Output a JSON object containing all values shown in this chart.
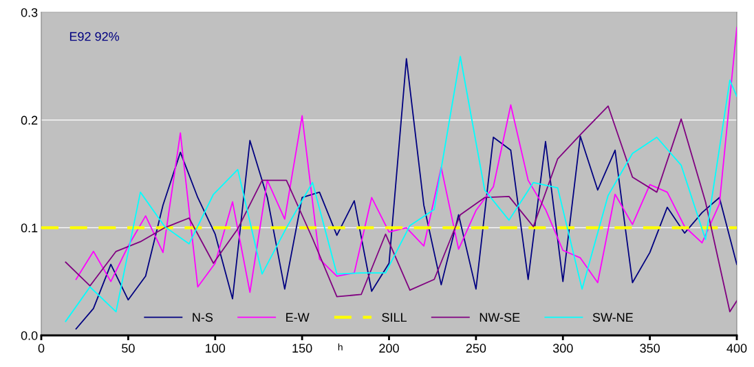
{
  "chart_data": {
    "type": "line",
    "annotations": [
      "E92 92%"
    ],
    "xlabel": "h",
    "xlim": [
      0,
      400
    ],
    "xticks": [
      0,
      50,
      100,
      150,
      200,
      250,
      300,
      350,
      400
    ],
    "ylim": [
      0,
      0.3
    ],
    "yticks": [
      {
        "value": 0,
        "label": "0.0"
      },
      0.1,
      0.2,
      0.3
    ],
    "grid": "y",
    "legend": "bottom",
    "marker": "none",
    "series": [
      {
        "name": "N-S",
        "color": "#000080",
        "x": [
          20,
          30,
          40,
          50,
          60,
          70,
          80,
          90,
          100,
          110,
          120,
          130,
          140,
          150,
          160,
          170,
          180,
          190,
          200,
          210,
          220,
          230,
          240,
          250,
          260,
          270,
          280,
          290,
          300,
          310,
          320,
          330,
          340,
          350,
          360,
          370,
          380,
          390,
          400
        ],
        "values": [
          0.006,
          0.025,
          0.066,
          0.033,
          0.055,
          0.121,
          0.17,
          0.128,
          0.094,
          0.034,
          0.181,
          0.128,
          0.043,
          0.128,
          0.133,
          0.093,
          0.125,
          0.041,
          0.067,
          0.257,
          0.121,
          0.047,
          0.112,
          0.043,
          0.184,
          0.172,
          0.052,
          0.18,
          0.05,
          0.185,
          0.135,
          0.172,
          0.049,
          0.077,
          0.119,
          0.095,
          0.114,
          0.128,
          0.066
        ]
      },
      {
        "name": "E-W",
        "color": "#ff00ff",
        "x": [
          20,
          30,
          40,
          50,
          60,
          70,
          80,
          90,
          100,
          110,
          120,
          130,
          140,
          150,
          160,
          170,
          180,
          190,
          200,
          210,
          220,
          230,
          240,
          250,
          260,
          270,
          280,
          290,
          300,
          310,
          320,
          330,
          340,
          350,
          360,
          370,
          380,
          390,
          400
        ],
        "values": [
          0.052,
          0.078,
          0.05,
          0.083,
          0.111,
          0.077,
          0.188,
          0.045,
          0.067,
          0.124,
          0.04,
          0.144,
          0.108,
          0.204,
          0.071,
          0.055,
          0.058,
          0.128,
          0.096,
          0.1,
          0.083,
          0.156,
          0.08,
          0.116,
          0.138,
          0.214,
          0.144,
          0.117,
          0.079,
          0.072,
          0.049,
          0.131,
          0.103,
          0.14,
          0.133,
          0.101,
          0.086,
          0.122,
          0.286
        ]
      },
      {
        "name": "SILL",
        "color": "#ffff00",
        "line_style": "dashed",
        "x": [
          0,
          400
        ],
        "values": [
          0.1,
          0.1
        ]
      },
      {
        "name": "NW-SE",
        "color": "#800080",
        "x": [
          14,
          28,
          43,
          57,
          71,
          85,
          99,
          113,
          127,
          141,
          156,
          170,
          184,
          198,
          212,
          226,
          241,
          255,
          269,
          283,
          297,
          311,
          326,
          340,
          354,
          368,
          382,
          396,
          400
        ],
        "values": [
          0.068,
          0.046,
          0.078,
          0.087,
          0.1,
          0.109,
          0.067,
          0.099,
          0.144,
          0.144,
          0.09,
          0.036,
          0.038,
          0.094,
          0.042,
          0.052,
          0.112,
          0.128,
          0.129,
          0.101,
          0.164,
          0.188,
          0.213,
          0.147,
          0.133,
          0.201,
          0.124,
          0.022,
          0.032
        ]
      },
      {
        "name": "SW-NE",
        "color": "#00ffff",
        "x": [
          14,
          28,
          43,
          57,
          71,
          85,
          99,
          113,
          127,
          141,
          156,
          170,
          184,
          198,
          212,
          226,
          241,
          255,
          269,
          283,
          297,
          311,
          326,
          340,
          354,
          368,
          382,
          396,
          400
        ],
        "values": [
          0.013,
          0.045,
          0.022,
          0.133,
          0.101,
          0.085,
          0.131,
          0.154,
          0.057,
          0.1,
          0.142,
          0.057,
          0.058,
          0.058,
          0.102,
          0.117,
          0.259,
          0.135,
          0.107,
          0.142,
          0.137,
          0.043,
          0.13,
          0.169,
          0.184,
          0.158,
          0.089,
          0.237,
          0.222
        ]
      }
    ]
  }
}
